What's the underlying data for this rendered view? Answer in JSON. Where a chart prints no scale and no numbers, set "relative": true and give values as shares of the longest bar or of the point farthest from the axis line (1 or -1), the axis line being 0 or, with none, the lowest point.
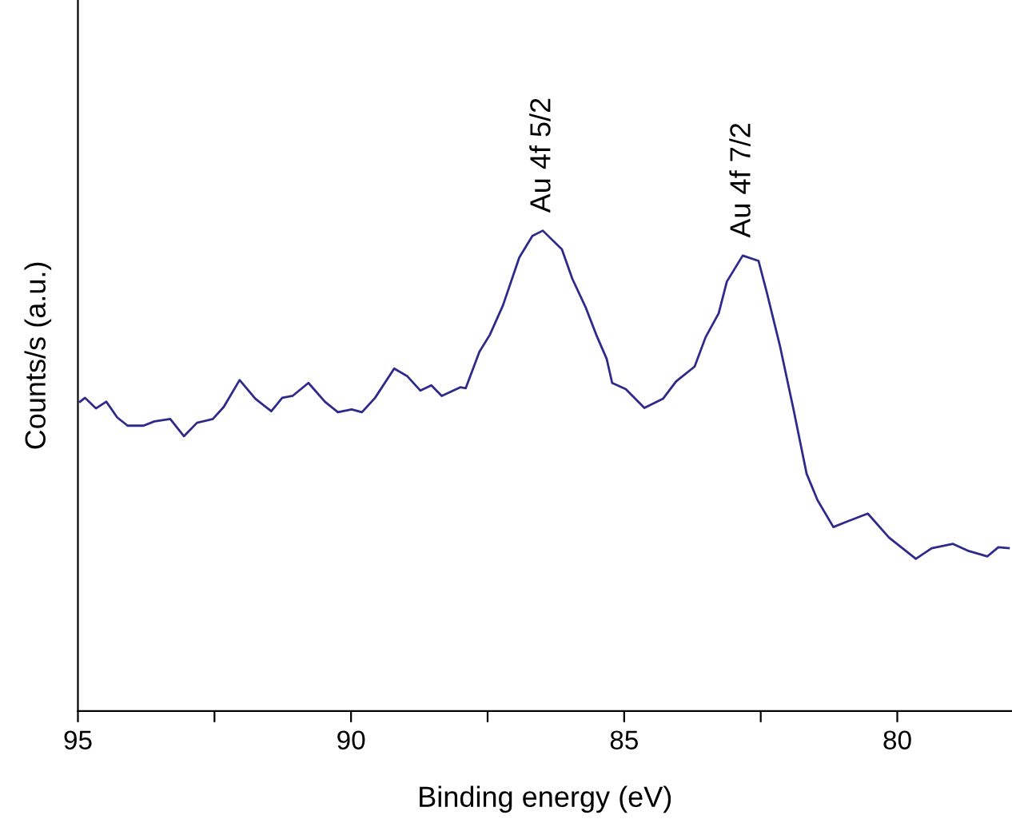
{
  "chart_data": {
    "type": "line",
    "relative": true,
    "xlabel": "Binding energy (eV)",
    "ylabel": "Counts/s (a.u.)",
    "xlim": [
      95,
      77.9
    ],
    "xticks": [
      95,
      {
        "value": 92.5,
        "label": null
      },
      90,
      {
        "value": 87.5,
        "label": null
      },
      85,
      {
        "value": 82.5,
        "label": null
      },
      80
    ],
    "tick_labels": "x",
    "grid": false,
    "legend": false,
    "marker": "none",
    "line_style": "solid",
    "annotations": [
      {
        "text": "Au 4f 5/2",
        "x": 86.49,
        "y": 1
      },
      {
        "text": "Au 4f 7/2",
        "x": 82.83,
        "y": 0.948
      }
    ],
    "series": [
      {
        "color": "#2e2a8c",
        "x": [
          94.96,
          94.87,
          94.67,
          94.48,
          94.28,
          94.09,
          93.8,
          93.6,
          93.31,
          93.06,
          92.82,
          92.53,
          92.33,
          92.04,
          91.75,
          91.46,
          91.26,
          91.07,
          90.78,
          90.48,
          90.24,
          89.99,
          89.8,
          89.56,
          89.21,
          88.97,
          88.73,
          88.53,
          88.34,
          88.0,
          87.9,
          87.65,
          87.46,
          87.22,
          86.92,
          86.68,
          86.49,
          86.14,
          85.95,
          85.7,
          85.51,
          85.32,
          85.22,
          84.97,
          84.63,
          84.29,
          84.05,
          83.71,
          83.51,
          83.27,
          83.12,
          82.83,
          82.54,
          82.39,
          82.15,
          81.9,
          81.66,
          81.46,
          81.17,
          80.93,
          80.54,
          80.15,
          79.66,
          79.37,
          78.98,
          78.69,
          78.35,
          78.15,
          77.96
        ],
        "values": [
          0.644,
          0.652,
          0.63,
          0.644,
          0.611,
          0.594,
          0.594,
          0.603,
          0.608,
          0.572,
          0.6,
          0.608,
          0.633,
          0.689,
          0.65,
          0.624,
          0.652,
          0.656,
          0.683,
          0.644,
          0.622,
          0.628,
          0.622,
          0.652,
          0.713,
          0.697,
          0.667,
          0.678,
          0.656,
          0.674,
          0.672,
          0.748,
          0.783,
          0.844,
          0.944,
          0.989,
          1,
          0.961,
          0.9,
          0.839,
          0.783,
          0.733,
          0.683,
          0.67,
          0.631,
          0.65,
          0.686,
          0.717,
          0.778,
          0.828,
          0.894,
          0.948,
          0.937,
          0.872,
          0.761,
          0.628,
          0.494,
          0.439,
          0.383,
          0.394,
          0.411,
          0.361,
          0.317,
          0.339,
          0.348,
          0.333,
          0.322,
          0.341,
          0.339
        ]
      }
    ]
  }
}
